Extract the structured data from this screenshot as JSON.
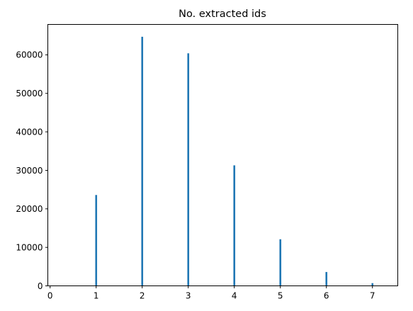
{
  "chart_data": {
    "type": "bar",
    "title": "No. extracted ids",
    "xlabel": "",
    "ylabel": "",
    "x": [
      0,
      1,
      2,
      3,
      4,
      5,
      6,
      7
    ],
    "values": [
      0,
      23600,
      64700,
      60400,
      31300,
      12100,
      3600,
      700
    ],
    "xlim": [
      -0.05,
      7.55
    ],
    "ylim": [
      0,
      67900
    ],
    "x_ticks": [
      0,
      1,
      2,
      3,
      4,
      5,
      6,
      7
    ],
    "x_tick_labels": [
      "0",
      "1",
      "2",
      "3",
      "4",
      "5",
      "6",
      "7"
    ],
    "y_ticks": [
      0,
      10000,
      20000,
      30000,
      40000,
      50000,
      60000
    ],
    "y_tick_labels": [
      "0",
      "10000",
      "20000",
      "30000",
      "40000",
      "50000",
      "60000"
    ],
    "grid": false,
    "bar_color": "#1f77b4"
  }
}
